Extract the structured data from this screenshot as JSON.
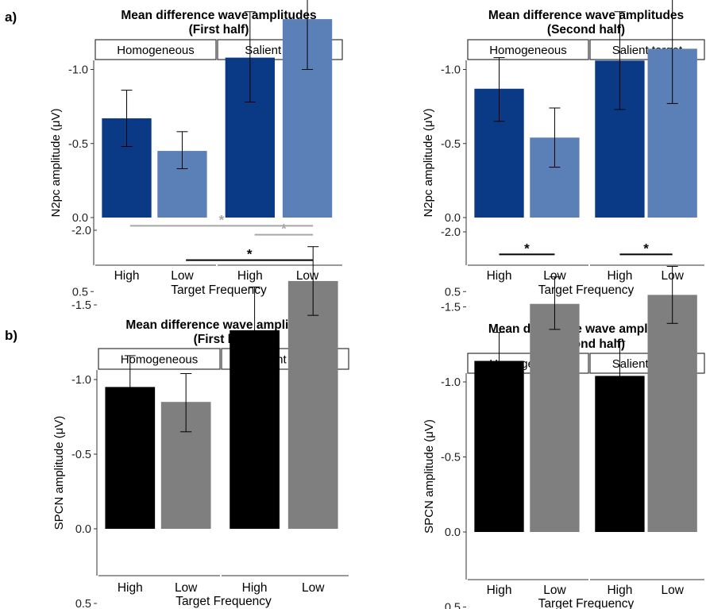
{
  "panel_labels": [
    "a)",
    "b)"
  ],
  "colors": {
    "n2pc_high": "#0a3a85",
    "n2pc_low": "#5b7fb7",
    "spcn_high": "#000000",
    "spcn_low": "#7f7f7f",
    "sig_black": "#000000",
    "sig_gray": "#a6a6a6"
  },
  "chart_data": [
    {
      "type": "bar",
      "title": "Mean difference wave amplitudes",
      "subtitle": "(First half)",
      "facets": [
        "Homogeneous",
        "Salient target"
      ],
      "categories": [
        "High",
        "Low"
      ],
      "xlabel": "Target Frequency",
      "ylabel": "N2pc amplitude (μV)",
      "y_reversed": true,
      "ylim": [
        -2.2,
        0.6
      ],
      "yticks": [
        -2.0,
        -1.5,
        -1.0,
        -0.5,
        0.0,
        0.5
      ],
      "ytick_labels": [
        "-2.0",
        "-1.5",
        "-1.0",
        "-0.5",
        "0.0",
        "0.5"
      ],
      "grid": false,
      "series": [
        {
          "facet": "Homogeneous",
          "values": [
            -0.67,
            -0.45
          ],
          "error_low": [
            -0.48,
            -0.33
          ],
          "error_high": [
            -0.86,
            -0.58
          ]
        },
        {
          "facet": "Salient target",
          "values": [
            -1.08,
            -1.34
          ],
          "error_low": [
            -0.78,
            -1.0
          ],
          "error_high": [
            -1.39,
            -1.67
          ]
        }
      ],
      "significance": [
        {
          "label": "*",
          "from": "Homogeneous High",
          "to": "Salient target High",
          "y": -1.62,
          "color": "black"
        },
        {
          "label": "*",
          "from": "Homogeneous Low",
          "to": "Salient target Low",
          "y": -1.92,
          "color": "black"
        }
      ]
    },
    {
      "type": "bar",
      "title": "Mean difference wave amplitudes",
      "subtitle": "(Second half)",
      "facets": [
        "Homogeneous",
        "Salient target"
      ],
      "categories": [
        "High",
        "Low"
      ],
      "xlabel": "Target Frequency",
      "ylabel": "N2pc amplitude (μV)",
      "y_reversed": true,
      "ylim": [
        -2.2,
        0.6
      ],
      "yticks": [
        -2.0,
        -1.5,
        -1.0,
        -0.5,
        0.0,
        0.5
      ],
      "ytick_labels": [
        "-2.0",
        "-1.5",
        "-1.0",
        "-0.5",
        "0.0",
        "0.5"
      ],
      "grid": false,
      "series": [
        {
          "facet": "Homogeneous",
          "values": [
            -0.87,
            -0.54
          ],
          "error_low": [
            -0.65,
            -0.34
          ],
          "error_high": [
            -1.08,
            -0.74
          ]
        },
        {
          "facet": "Salient target",
          "values": [
            -1.06,
            -1.14
          ],
          "error_low": [
            -0.73,
            -0.77
          ],
          "error_high": [
            -1.39,
            -1.5
          ]
        }
      ],
      "significance": [
        {
          "label": "*",
          "from": "Homogeneous High",
          "to": "Salient target High",
          "y": -1.62,
          "color": "gray"
        },
        {
          "label": "*",
          "from": "Homogeneous Low",
          "to": "Salient target Low",
          "y": -1.92,
          "color": "gray"
        }
      ]
    },
    {
      "type": "bar",
      "title": "Mean difference wave amplitudes",
      "subtitle": "(First half)",
      "facets": [
        "Homogeneous",
        "Salient target"
      ],
      "categories": [
        "High",
        "Low"
      ],
      "xlabel": "Target Frequency",
      "ylabel": "SPCN amplitude (μV)",
      "y_reversed": true,
      "ylim": [
        -2.2,
        0.6
      ],
      "yticks": [
        -2.0,
        -1.5,
        -1.0,
        -0.5,
        0.0,
        0.5
      ],
      "ytick_labels": [
        "-2.0",
        "-1.5",
        "-1.0",
        "-0.5",
        "0.0",
        "0.5"
      ],
      "grid": false,
      "series": [
        {
          "facet": "Homogeneous",
          "values": [
            -0.95,
            -0.85
          ],
          "error_low": [
            -0.74,
            -0.65
          ],
          "error_high": [
            -1.16,
            -1.04
          ]
        },
        {
          "facet": "Salient target",
          "values": [
            -1.33,
            -1.66
          ],
          "error_low": [
            -1.03,
            -1.43
          ],
          "error_high": [
            -1.62,
            -1.89
          ]
        }
      ],
      "significance": [
        {
          "label": "*",
          "from": "Homogeneous High",
          "to": "Salient target Low",
          "y": -2.03,
          "color": "gray"
        },
        {
          "label": "*",
          "from": "Salient target High",
          "to": "Salient target Low",
          "y": -1.97,
          "color": "gray"
        },
        {
          "label": "*",
          "from": "Homogeneous Low",
          "to": "Salient target Low",
          "y": -1.8,
          "color": "black"
        }
      ]
    },
    {
      "type": "bar",
      "title": "Mean difference wave amplitudes",
      "subtitle": "(Second half)",
      "facets": [
        "Homogeneous",
        "Salient target"
      ],
      "categories": [
        "High",
        "Low"
      ],
      "xlabel": "Target Frequency",
      "ylabel": "SPCN amplitude (μV)",
      "y_reversed": true,
      "ylim": [
        -2.2,
        0.6
      ],
      "yticks": [
        -2.0,
        -1.5,
        -1.0,
        -0.5,
        0.0,
        0.5
      ],
      "ytick_labels": [
        "-2.0",
        "-1.5",
        "-1.0",
        "-0.5",
        "0.0",
        "0.5"
      ],
      "grid": false,
      "series": [
        {
          "facet": "Homogeneous",
          "values": [
            -1.14,
            -1.52
          ],
          "error_low": [
            -0.95,
            -1.35
          ],
          "error_high": [
            -1.33,
            -1.7
          ]
        },
        {
          "facet": "Salient target",
          "values": [
            -1.04,
            -1.58
          ],
          "error_low": [
            -0.82,
            -1.39
          ],
          "error_high": [
            -1.27,
            -1.77
          ]
        }
      ],
      "significance": [
        {
          "label": "*",
          "from": "Homogeneous High",
          "to": "Homogeneous Low",
          "y": -1.85,
          "color": "black"
        },
        {
          "label": "*",
          "from": "Salient target High",
          "to": "Salient target Low",
          "y": -1.85,
          "color": "black"
        }
      ]
    }
  ]
}
